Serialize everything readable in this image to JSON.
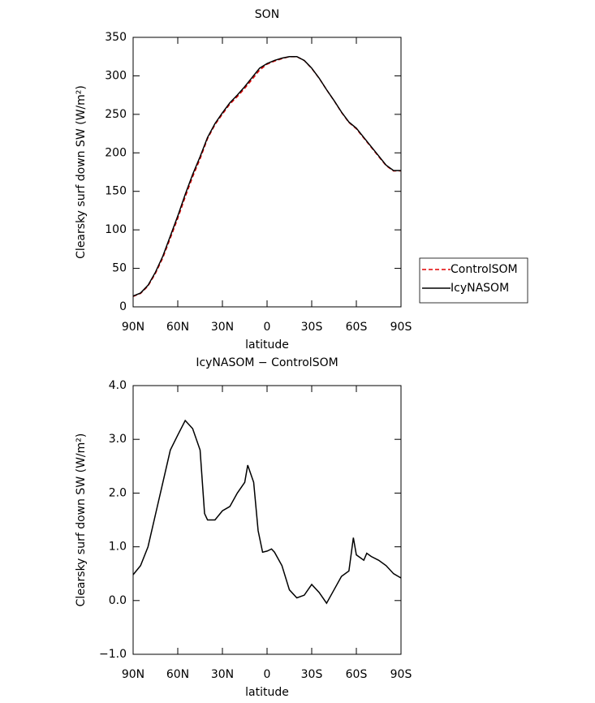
{
  "chart_data": [
    {
      "type": "line",
      "title": "SON",
      "xlabel": "latitude",
      "ylabel": "Clearsky surf down SW (W/m²)",
      "x": [
        90,
        85,
        80,
        75,
        70,
        65,
        60,
        55,
        50,
        45,
        40,
        35,
        30,
        25,
        20,
        15,
        10,
        5,
        0,
        -5,
        -10,
        -15,
        -20,
        -25,
        -30,
        -35,
        -40,
        -45,
        -50,
        -55,
        -60,
        -65,
        -70,
        -75,
        -80,
        -85,
        -90
      ],
      "series": [
        {
          "name": "ControlSOM",
          "color": "#e00000",
          "linestyle": "dashed",
          "values": [
            13.5,
            17.4,
            27,
            43.4,
            63.8,
            89.2,
            114.9,
            142.7,
            168.8,
            192.2,
            218.5,
            236.5,
            250.3,
            263.3,
            273,
            283.8,
            295.5,
            307.5,
            315.1,
            319.1,
            322.3,
            324.8,
            324.9,
            319.9,
            309.7,
            296.8,
            282,
            267.8,
            252.6,
            239.4,
            231.2,
            219.2,
            207.2,
            195.2,
            183.3,
            176.5,
            176.6
          ]
        },
        {
          "name": "IcyNASOM",
          "color": "#000000",
          "linestyle": "solid",
          "values": [
            14,
            18,
            28,
            45,
            66,
            92,
            118,
            146,
            172,
            195,
            220,
            238,
            252,
            265,
            275,
            286,
            298,
            310,
            316,
            320,
            323,
            325,
            325,
            320,
            310,
            297,
            282,
            268,
            253,
            240,
            232,
            220,
            208,
            196,
            184,
            177,
            177
          ]
        }
      ],
      "xlim": [
        90,
        -90
      ],
      "xticks": [
        {
          "value": 90,
          "label": "90N"
        },
        {
          "value": 60,
          "label": "60N"
        },
        {
          "value": 30,
          "label": "30N"
        },
        0,
        {
          "value": -30,
          "label": "30S"
        },
        {
          "value": -60,
          "label": "60S"
        },
        {
          "value": -90,
          "label": "90S"
        }
      ],
      "ylim": [
        0,
        350
      ],
      "yticks": [
        0,
        50,
        100,
        150,
        200,
        250,
        300,
        350
      ],
      "legend": "right"
    },
    {
      "type": "line",
      "title": "IcyNASOM − ControlSOM",
      "xlabel": "latitude",
      "ylabel": "Clearsky surf down SW (W/m²)",
      "x": [
        90,
        85,
        80,
        75,
        70,
        65,
        60,
        55,
        50,
        45,
        42,
        40,
        35,
        30,
        25,
        20,
        15,
        13,
        9,
        6,
        3,
        0,
        -3,
        -5,
        -10,
        -15,
        -20,
        -25,
        -30,
        -35,
        -40,
        -45,
        -50,
        -55,
        -58,
        -60,
        -65,
        -67,
        -70,
        -75,
        -80,
        -85,
        -90
      ],
      "series": [
        {
          "color": "#000000",
          "linestyle": "solid",
          "values": [
            0.48,
            0.65,
            1.0,
            1.6,
            2.2,
            2.8,
            3.08,
            3.35,
            3.2,
            2.8,
            1.62,
            1.5,
            1.5,
            1.67,
            1.75,
            2.0,
            2.2,
            2.52,
            2.2,
            1.3,
            0.9,
            0.92,
            0.96,
            0.9,
            0.65,
            0.2,
            0.05,
            0.1,
            0.3,
            0.15,
            -0.05,
            0.2,
            0.45,
            0.55,
            1.17,
            0.85,
            0.75,
            0.88,
            0.82,
            0.75,
            0.65,
            0.5,
            0.42
          ]
        }
      ],
      "xlim": [
        90,
        -90
      ],
      "xticks": [
        {
          "value": 90,
          "label": "90N"
        },
        {
          "value": 60,
          "label": "60N"
        },
        {
          "value": 30,
          "label": "30N"
        },
        0,
        {
          "value": -30,
          "label": "30S"
        },
        {
          "value": -60,
          "label": "60S"
        },
        {
          "value": -90,
          "label": "90S"
        }
      ],
      "ylim": [
        -1,
        4
      ],
      "yticks": [
        {
          "value": -1,
          "label": "−1.0"
        },
        {
          "value": 0,
          "label": "0.0"
        },
        {
          "value": 1,
          "label": "1.0"
        },
        {
          "value": 2,
          "label": "2.0"
        },
        {
          "value": 3,
          "label": "3.0"
        },
        {
          "value": 4,
          "label": "4.0"
        }
      ]
    }
  ]
}
